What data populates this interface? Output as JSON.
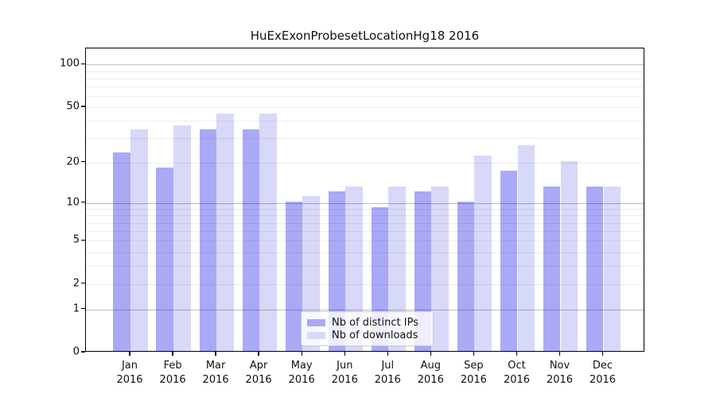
{
  "title": "HuExExonProbesetLocationHg18 2016",
  "chart_data": {
    "type": "bar",
    "scale": "log1p",
    "title": "HuExExonProbesetLocationHg18 2016",
    "categories": [
      "Jan",
      "Feb",
      "Mar",
      "Apr",
      "May",
      "Jun",
      "Jul",
      "Aug",
      "Sep",
      "Oct",
      "Nov",
      "Dec"
    ],
    "year_label": "2016",
    "series": [
      {
        "name": "Nb of distinct IPs",
        "color": "#a9a9f6",
        "values": [
          23,
          18,
          34,
          34,
          10,
          12,
          9,
          12,
          10,
          17,
          13,
          13
        ]
      },
      {
        "name": "Nb of downloads",
        "color": "#d8d8f8",
        "values": [
          34,
          36,
          44,
          44,
          11,
          13,
          13,
          13,
          22,
          26,
          20,
          13
        ]
      }
    ],
    "y_ticks": [
      0,
      1,
      2,
      5,
      10,
      20,
      50,
      100
    ],
    "grid_major": [
      1,
      10,
      100
    ],
    "grid_minor": [
      2,
      3,
      4,
      5,
      6,
      7,
      8,
      9,
      20,
      30,
      40,
      50,
      60,
      70,
      80,
      90
    ],
    "ylim": [
      0,
      130
    ],
    "xlabel": "",
    "ylabel": "",
    "grid": true,
    "legend_position": "lower center"
  }
}
